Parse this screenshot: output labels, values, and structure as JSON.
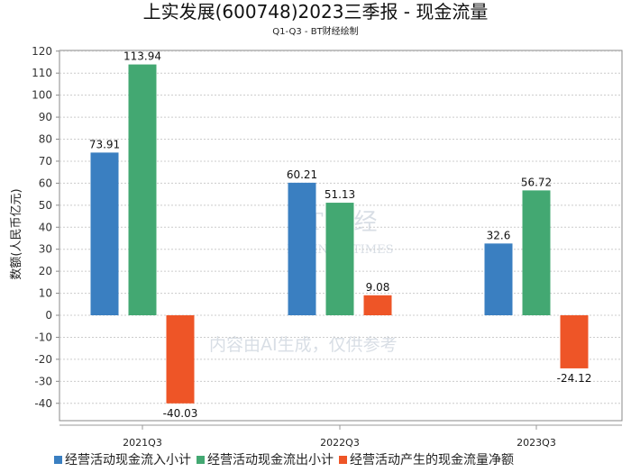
{
  "chart_data": {
    "type": "bar",
    "title": "上实发展(600748)2023三季报 - 现金流量",
    "subtitle": "Q1-Q3 - BT财经绘制",
    "ylabel": "数额(人民币亿元)",
    "xlabel": "",
    "ylim": [
      -48,
      120
    ],
    "yticks": [
      -40,
      -30,
      -20,
      -10,
      0,
      10,
      20,
      30,
      40,
      50,
      60,
      70,
      80,
      90,
      100,
      110,
      120
    ],
    "categories": [
      "2021Q3",
      "2022Q3",
      "2023Q3"
    ],
    "series": [
      {
        "name": "经营活动现金流入小计",
        "color": "#3a7fc1",
        "values": [
          73.91,
          60.21,
          32.6
        ],
        "labels": [
          "73.91",
          "60.21",
          "32.6"
        ]
      },
      {
        "name": "经营活动现金流出小计",
        "color": "#43a872",
        "values": [
          113.94,
          51.13,
          56.72
        ],
        "labels": [
          "113.94",
          "51.13",
          "56.72"
        ]
      },
      {
        "name": "经营活动产生的现金流量净额",
        "color": "#ee5527",
        "values": [
          -40.03,
          9.08,
          -24.12
        ],
        "labels": [
          "-40.03",
          "9.08",
          "-24.12"
        ]
      }
    ],
    "grid": true,
    "legend_position": "bottom-left"
  },
  "watermark": {
    "brand": "BT财经",
    "brand_en": "BUSINESSTIMES",
    "notice": "内容由AI生成，仅供参考"
  }
}
